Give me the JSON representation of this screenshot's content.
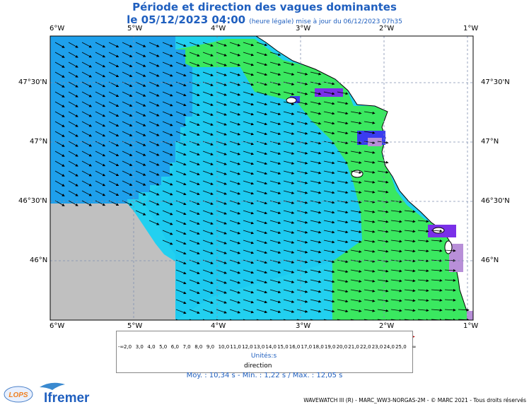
{
  "header": {
    "title": "Période et direction des vagues dominantes",
    "date_line": "le 05/12/2023 04:00",
    "update_note": "(heure légale) mise à jour du 06/12/2023 07h35"
  },
  "axes": {
    "lon_labels": [
      "6°W",
      "5°W",
      "4°W",
      "3°W",
      "2°W",
      "1°W"
    ],
    "lat_labels": [
      "47°30'N",
      "47°N",
      "46°30'N",
      "46°N"
    ]
  },
  "legend": {
    "values": [
      "2,0",
      "3,0",
      "4,0",
      "5,0",
      "6,0",
      "7,0",
      "8,0",
      "9,0",
      "10,0",
      "11,0",
      "12,0",
      "13,0",
      "14,0",
      "15,0",
      "16,0",
      "17,0",
      "18,0",
      "19,0",
      "20,0",
      "21,0",
      "22,0",
      "23,0",
      "24,0",
      "25,0"
    ],
    "low_label": "-∞",
    "high_label": "∞",
    "colors": [
      "#b88fd8",
      "#8a38e0",
      "#6a2ff0",
      "#3a3cf0",
      "#1e6cf2",
      "#1e98f0",
      "#18b4f2",
      "#18cdf0",
      "#20e0d8",
      "#20e8a0",
      "#2ee860",
      "#50ee30",
      "#90f020",
      "#c8f020",
      "#f0f020",
      "#f0d818",
      "#f0b010",
      "#f08c10",
      "#f06a10",
      "#f04c10",
      "#e83010",
      "#e01a10",
      "#d01010",
      "#b00808"
    ],
    "units": "Unités:s",
    "direction_label": "direction"
  },
  "stats": "Moy. : 10,34 s   -   Min. : 1,22 s / Max. : 12,05 s",
  "footer": "WAVEWATCH III (R) - MARC_WW3-NORGAS-2M - © MARC 2021 - Tous droits réservés",
  "logos": {
    "lops": "LOPS",
    "ifremer": "Ifremer"
  },
  "colors": {
    "land": "#ffffff",
    "nodata": "#c0c0c0",
    "deep_blue": "#1ea0ec",
    "cyan": "#1ccaf0",
    "light_cyan": "#28dcf0",
    "green": "#3ae860",
    "purple": "#8a38e0",
    "title": "#1f5fbf"
  }
}
